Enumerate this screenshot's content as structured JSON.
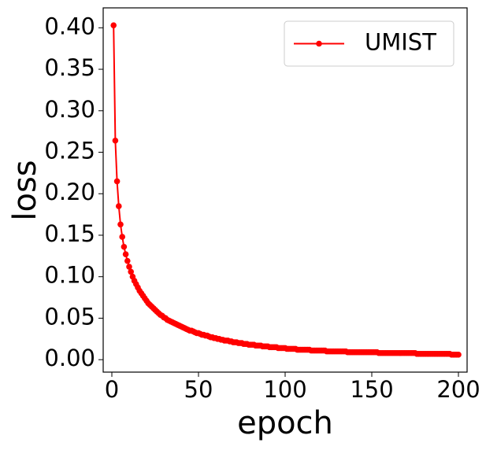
{
  "chart_data": {
    "type": "line",
    "xlabel": "epoch",
    "ylabel": "loss",
    "x": [
      1,
      2,
      3,
      4,
      5,
      6,
      7,
      8,
      9,
      10,
      11,
      12,
      13,
      14,
      15,
      16,
      17,
      18,
      19,
      20,
      21,
      22,
      23,
      24,
      25,
      26,
      27,
      28,
      29,
      30,
      31,
      32,
      33,
      34,
      35,
      36,
      37,
      38,
      39,
      40,
      41,
      42,
      43,
      44,
      45,
      46,
      47,
      48,
      49,
      50,
      51,
      52,
      53,
      54,
      55,
      56,
      57,
      58,
      59,
      60,
      61,
      62,
      63,
      64,
      65,
      66,
      67,
      68,
      69,
      70,
      71,
      72,
      73,
      74,
      75,
      76,
      77,
      78,
      79,
      80,
      81,
      82,
      83,
      84,
      85,
      86,
      87,
      88,
      89,
      90,
      91,
      92,
      93,
      94,
      95,
      96,
      97,
      98,
      99,
      100,
      101,
      102,
      103,
      104,
      105,
      106,
      107,
      108,
      109,
      110,
      111,
      112,
      113,
      114,
      115,
      116,
      117,
      118,
      119,
      120,
      121,
      122,
      123,
      124,
      125,
      126,
      127,
      128,
      129,
      130,
      131,
      132,
      133,
      134,
      135,
      136,
      137,
      138,
      139,
      140,
      141,
      142,
      143,
      144,
      145,
      146,
      147,
      148,
      149,
      150,
      151,
      152,
      153,
      154,
      155,
      156,
      157,
      158,
      159,
      160,
      161,
      162,
      163,
      164,
      165,
      166,
      167,
      168,
      169,
      170,
      171,
      172,
      173,
      174,
      175,
      176,
      177,
      178,
      179,
      180,
      181,
      182,
      183,
      184,
      185,
      186,
      187,
      188,
      189,
      190,
      191,
      192,
      193,
      194,
      195,
      196,
      197,
      198,
      199,
      200
    ],
    "series": [
      {
        "name": "UMIST",
        "color": "#ff0000",
        "values": [
          0.403,
          0.264,
          0.215,
          0.185,
          0.163,
          0.148,
          0.136,
          0.127,
          0.119,
          0.112,
          0.106,
          0.1,
          0.095,
          0.091,
          0.087,
          0.083,
          0.08,
          0.077,
          0.074,
          0.071,
          0.068,
          0.066,
          0.064,
          0.062,
          0.06,
          0.058,
          0.056,
          0.054,
          0.053,
          0.051,
          0.05,
          0.048,
          0.047,
          0.046,
          0.045,
          0.044,
          0.043,
          0.042,
          0.041,
          0.04,
          0.039,
          0.038,
          0.037,
          0.036,
          0.035,
          0.035,
          0.034,
          0.033,
          0.032,
          0.032,
          0.031,
          0.03,
          0.03,
          0.029,
          0.029,
          0.028,
          0.027,
          0.027,
          0.026,
          0.026,
          0.025,
          0.025,
          0.024,
          0.024,
          0.023,
          0.023,
          0.023,
          0.022,
          0.022,
          0.021,
          0.021,
          0.021,
          0.02,
          0.02,
          0.02,
          0.019,
          0.019,
          0.019,
          0.018,
          0.018,
          0.018,
          0.018,
          0.017,
          0.017,
          0.017,
          0.017,
          0.016,
          0.016,
          0.016,
          0.016,
          0.015,
          0.015,
          0.015,
          0.015,
          0.015,
          0.014,
          0.014,
          0.014,
          0.014,
          0.014,
          0.013,
          0.013,
          0.013,
          0.013,
          0.013,
          0.013,
          0.012,
          0.012,
          0.012,
          0.012,
          0.012,
          0.012,
          0.012,
          0.012,
          0.011,
          0.011,
          0.011,
          0.011,
          0.011,
          0.011,
          0.011,
          0.011,
          0.011,
          0.01,
          0.01,
          0.01,
          0.01,
          0.01,
          0.01,
          0.01,
          0.01,
          0.01,
          0.01,
          0.01,
          0.01,
          0.009,
          0.009,
          0.009,
          0.009,
          0.009,
          0.009,
          0.009,
          0.009,
          0.009,
          0.009,
          0.009,
          0.009,
          0.009,
          0.009,
          0.009,
          0.009,
          0.009,
          0.009,
          0.008,
          0.008,
          0.008,
          0.008,
          0.008,
          0.008,
          0.008,
          0.008,
          0.008,
          0.008,
          0.008,
          0.008,
          0.008,
          0.008,
          0.008,
          0.008,
          0.008,
          0.008,
          0.008,
          0.008,
          0.008,
          0.008,
          0.007,
          0.007,
          0.007,
          0.007,
          0.007,
          0.007,
          0.007,
          0.007,
          0.007,
          0.007,
          0.007,
          0.007,
          0.007,
          0.007,
          0.007,
          0.007,
          0.007,
          0.007,
          0.007,
          0.007,
          0.006,
          0.006,
          0.006,
          0.006,
          0.006
        ]
      }
    ],
    "xlim": [
      -5,
      205
    ],
    "xticks": [
      0,
      50,
      100,
      150,
      200
    ],
    "ylim": [
      -0.015,
      0.424
    ],
    "yticks": [
      {
        "value": 0,
        "label": "0.00"
      },
      {
        "value": 0.05,
        "label": "0.05"
      },
      {
        "value": 0.1,
        "label": "0.10"
      },
      {
        "value": 0.15,
        "label": "0.15"
      },
      {
        "value": 0.2,
        "label": "0.20"
      },
      {
        "value": 0.25,
        "label": "0.25"
      },
      {
        "value": 0.3,
        "label": "0.30"
      },
      {
        "value": 0.35,
        "label": "0.35"
      },
      {
        "value": 0.4,
        "label": "0.40"
      }
    ],
    "legend": "upper right",
    "grid": false
  }
}
